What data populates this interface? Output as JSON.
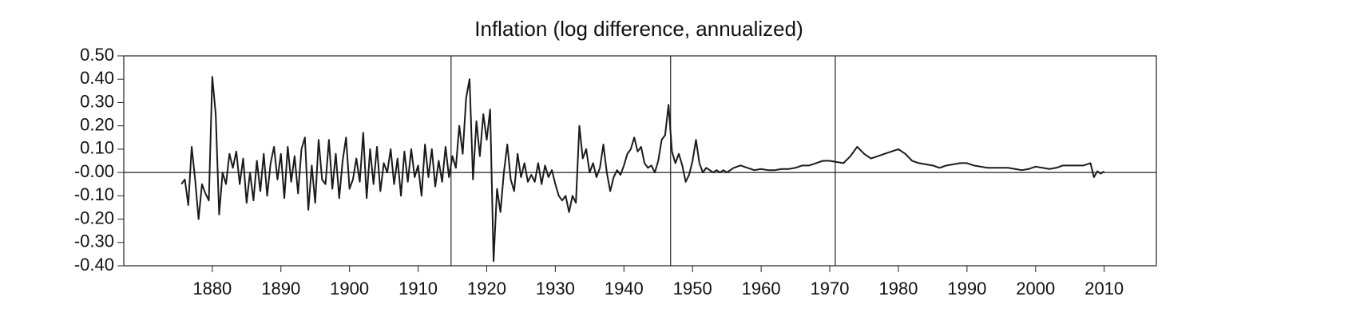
{
  "chart_data": {
    "type": "line",
    "title": "Inflation (log difference, annualized)",
    "x": [
      1875.5,
      1876,
      1876.5,
      1877,
      1877.5,
      1878,
      1878.5,
      1879,
      1879.5,
      1880,
      1880.5,
      1881,
      1881.5,
      1882,
      1882.5,
      1883,
      1883.5,
      1884,
      1884.5,
      1885,
      1885.5,
      1886,
      1886.5,
      1887,
      1887.5,
      1888,
      1888.5,
      1889,
      1889.5,
      1890,
      1890.5,
      1891,
      1891.5,
      1892,
      1892.5,
      1893,
      1893.5,
      1894,
      1894.5,
      1895,
      1895.5,
      1896,
      1896.5,
      1897,
      1897.5,
      1898,
      1898.5,
      1899,
      1899.5,
      1900,
      1900.5,
      1901,
      1901.5,
      1902,
      1902.5,
      1903,
      1903.5,
      1904,
      1904.5,
      1905,
      1905.5,
      1906,
      1906.5,
      1907,
      1907.5,
      1908,
      1908.5,
      1909,
      1909.5,
      1910,
      1910.5,
      1911,
      1911.5,
      1912,
      1912.5,
      1913,
      1913.5,
      1914,
      1914.5,
      1915,
      1915.5,
      1916,
      1916.5,
      1917,
      1917.5,
      1918,
      1918.5,
      1919,
      1919.5,
      1920,
      1920.5,
      1921,
      1921.5,
      1922,
      1922.5,
      1923,
      1923.5,
      1924,
      1924.5,
      1925,
      1925.5,
      1926,
      1926.5,
      1927,
      1927.5,
      1928,
      1928.5,
      1929,
      1929.5,
      1930,
      1930.5,
      1931,
      1931.5,
      1932,
      1932.5,
      1933,
      1933.5,
      1934,
      1934.5,
      1935,
      1935.5,
      1936,
      1936.5,
      1937,
      1937.5,
      1938,
      1938.5,
      1939,
      1939.5,
      1940,
      1940.5,
      1941,
      1941.5,
      1942,
      1942.5,
      1943,
      1943.5,
      1944,
      1944.5,
      1945,
      1945.5,
      1946,
      1946.5,
      1947,
      1947.5,
      1948,
      1948.5,
      1949,
      1949.5,
      1950,
      1950.5,
      1951,
      1951.5,
      1952,
      1952.5,
      1953,
      1953.5,
      1954,
      1954.5,
      1955,
      1956,
      1957,
      1958,
      1959,
      1960,
      1961,
      1962,
      1963,
      1964,
      1965,
      1966,
      1967,
      1968,
      1969,
      1970,
      1971,
      1972,
      1973,
      1974,
      1975,
      1976,
      1977,
      1978,
      1979,
      1980,
      1981,
      1982,
      1983,
      1984,
      1985,
      1986,
      1987,
      1988,
      1989,
      1990,
      1991,
      1992,
      1993,
      1994,
      1995,
      1996,
      1997,
      1998,
      1999,
      2000,
      2001,
      2002,
      2003,
      2004,
      2005,
      2006,
      2007,
      2008,
      2008.5,
      2009,
      2009.5,
      2010
    ],
    "values": [
      -0.05,
      -0.03,
      -0.14,
      0.11,
      -0.03,
      -0.2,
      -0.05,
      -0.09,
      -0.12,
      0.41,
      0.25,
      -0.18,
      0.0,
      -0.05,
      0.08,
      0.02,
      0.09,
      -0.05,
      0.06,
      -0.13,
      0.0,
      -0.12,
      0.05,
      -0.08,
      0.08,
      -0.1,
      0.04,
      0.11,
      -0.03,
      0.08,
      -0.11,
      0.11,
      -0.04,
      0.07,
      -0.09,
      0.1,
      0.15,
      -0.16,
      0.03,
      -0.13,
      0.14,
      -0.03,
      -0.05,
      0.14,
      -0.07,
      0.08,
      -0.11,
      0.05,
      0.15,
      -0.07,
      -0.03,
      0.06,
      -0.04,
      0.17,
      -0.11,
      0.1,
      -0.05,
      0.11,
      -0.08,
      0.04,
      0.0,
      0.1,
      -0.05,
      0.06,
      -0.1,
      0.09,
      -0.04,
      0.1,
      -0.02,
      0.03,
      -0.1,
      0.12,
      -0.02,
      0.1,
      -0.06,
      0.05,
      -0.04,
      0.11,
      -0.02,
      0.07,
      0.02,
      0.2,
      0.08,
      0.32,
      0.4,
      -0.03,
      0.22,
      0.07,
      0.25,
      0.14,
      0.27,
      -0.38,
      -0.07,
      -0.17,
      0.0,
      0.12,
      -0.03,
      -0.08,
      0.08,
      -0.02,
      0.04,
      -0.04,
      -0.01,
      -0.04,
      0.04,
      -0.05,
      0.03,
      -0.02,
      0.01,
      -0.05,
      -0.1,
      -0.12,
      -0.1,
      -0.17,
      -0.1,
      -0.13,
      0.2,
      0.06,
      0.1,
      0.0,
      0.04,
      -0.02,
      0.02,
      0.12,
      0.0,
      -0.08,
      -0.02,
      0.01,
      -0.01,
      0.03,
      0.08,
      0.1,
      0.15,
      0.09,
      0.11,
      0.04,
      0.02,
      0.03,
      0.0,
      0.05,
      0.14,
      0.16,
      0.29,
      0.09,
      0.04,
      0.08,
      0.03,
      -0.04,
      -0.01,
      0.05,
      0.14,
      0.04,
      0.0,
      0.02,
      0.01,
      0.0,
      0.01,
      0.0,
      0.01,
      0.0,
      0.02,
      0.03,
      0.02,
      0.01,
      0.015,
      0.01,
      0.01,
      0.015,
      0.015,
      0.02,
      0.03,
      0.03,
      0.04,
      0.05,
      0.05,
      0.045,
      0.04,
      0.07,
      0.11,
      0.08,
      0.06,
      0.07,
      0.08,
      0.09,
      0.1,
      0.08,
      0.05,
      0.04,
      0.035,
      0.03,
      0.02,
      0.03,
      0.035,
      0.04,
      0.04,
      0.03,
      0.025,
      0.02,
      0.02,
      0.02,
      0.02,
      0.015,
      0.01,
      0.015,
      0.025,
      0.02,
      0.015,
      0.02,
      0.03,
      0.03,
      0.03,
      0.03,
      0.04,
      -0.02,
      0.005,
      -0.005,
      0.005
    ],
    "color": "#1a1a1a",
    "xlim": [
      1867.1,
      2017.6
    ],
    "xticks": [
      1880,
      1890,
      1900,
      1910,
      1920,
      1930,
      1940,
      1950,
      1960,
      1970,
      1980,
      1990,
      2000,
      2010
    ],
    "ylim": [
      -0.4,
      0.5
    ],
    "yticks": [
      {
        "value": 0.5,
        "label": "0.50"
      },
      {
        "value": 0.4,
        "label": "0.40"
      },
      {
        "value": 0.3,
        "label": "0.30"
      },
      {
        "value": 0.2,
        "label": "0.20"
      },
      {
        "value": 0.1,
        "label": "0.10"
      },
      {
        "value": 0,
        "label": "-0.00"
      },
      {
        "value": -0.1,
        "label": "-0.10"
      },
      {
        "value": -0.2,
        "label": "-0.20"
      },
      {
        "value": -0.3,
        "label": "-0.30"
      },
      {
        "value": -0.4,
        "label": "-0.40"
      }
    ],
    "hline": 0,
    "vlines": [
      1914.8,
      1946.8,
      1970.8
    ]
  }
}
